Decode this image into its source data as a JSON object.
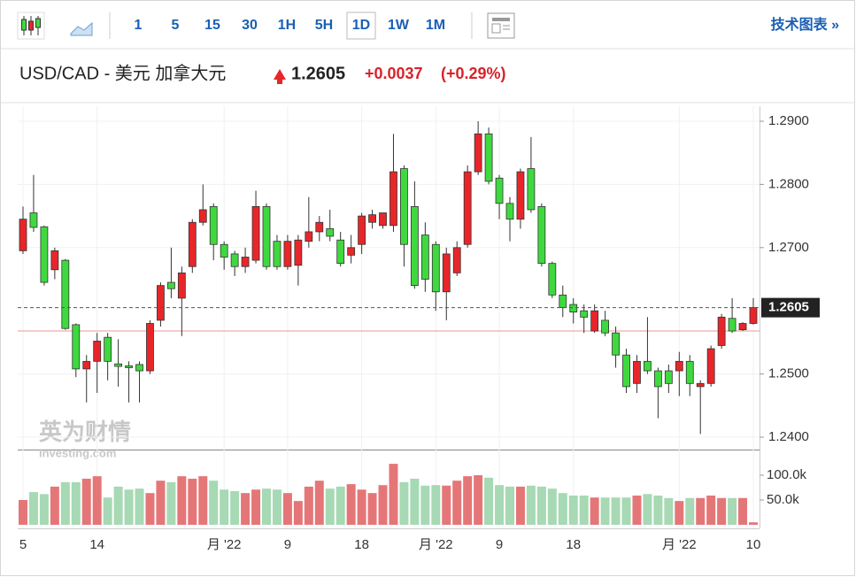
{
  "toolbar": {
    "intervals": [
      "1",
      "5",
      "15",
      "30",
      "1H",
      "5H",
      "1D",
      "1W",
      "1M"
    ],
    "active": "1D",
    "link": "技术图表 »"
  },
  "header": {
    "title": "USD/CAD - 美元 加拿大元",
    "price": "1.2605",
    "change": "+0.0037",
    "change_pct": "(+0.29%)"
  },
  "watermark": {
    "brand": "英为财情",
    "site": "Investing.com"
  },
  "chart_data": {
    "type": "candlestick",
    "categories": [
      "5",
      null,
      null,
      null,
      null,
      null,
      null,
      "14",
      null,
      null,
      null,
      null,
      null,
      null,
      null,
      null,
      null,
      null,
      null,
      "月 '22",
      null,
      null,
      null,
      null,
      null,
      "9",
      null,
      null,
      null,
      null,
      null,
      null,
      "18",
      null,
      null,
      null,
      null,
      null,
      null,
      "月 '22",
      null,
      null,
      null,
      null,
      null,
      "9",
      null,
      null,
      null,
      null,
      null,
      null,
      "18",
      null,
      null,
      null,
      null,
      null,
      null,
      null,
      null,
      null,
      "月 '22",
      null,
      null,
      null,
      null,
      null,
      null,
      "10"
    ],
    "open": [
      1.2695,
      1.2755,
      1.2733,
      1.2665,
      1.268,
      1.2578,
      1.2508,
      1.252,
      1.2558,
      1.2516,
      1.2513,
      1.2515,
      1.2505,
      1.2585,
      1.2645,
      1.262,
      1.267,
      1.274,
      1.2765,
      1.2705,
      1.269,
      1.267,
      1.268,
      1.2765,
      1.271,
      1.267,
      1.2672,
      1.271,
      1.2725,
      1.273,
      1.2712,
      1.2688,
      1.2705,
      1.274,
      1.2735,
      1.2735,
      1.2825,
      1.2765,
      1.272,
      1.2705,
      1.263,
      1.266,
      1.2705,
      1.282,
      1.288,
      1.281,
      1.277,
      1.2745,
      1.2825,
      1.2765,
      1.2675,
      1.2625,
      1.261,
      1.26,
      1.2568,
      1.2585,
      1.2565,
      1.253,
      1.2485,
      1.252,
      1.2505,
      1.2505,
      1.2505,
      1.252,
      1.248,
      1.2485,
      1.2545,
      1.2588,
      1.257,
      1.258
    ],
    "high": [
      1.2765,
      1.2815,
      1.2735,
      1.27,
      1.2682,
      1.258,
      1.253,
      1.2565,
      1.2565,
      1.2555,
      1.252,
      1.252,
      1.2585,
      1.2645,
      1.27,
      1.267,
      1.2745,
      1.28,
      1.277,
      1.271,
      1.2695,
      1.27,
      1.279,
      1.277,
      1.272,
      1.272,
      1.272,
      1.278,
      1.275,
      1.276,
      1.2725,
      1.272,
      1.2755,
      1.276,
      1.2755,
      1.288,
      1.283,
      1.2805,
      1.274,
      1.271,
      1.27,
      1.271,
      1.283,
      1.29,
      1.289,
      1.2815,
      1.278,
      1.2825,
      1.2875,
      1.277,
      1.2678,
      1.264,
      1.262,
      1.261,
      1.261,
      1.26,
      1.2575,
      1.254,
      1.253,
      1.259,
      1.251,
      1.2515,
      1.2535,
      1.253,
      1.249,
      1.2545,
      1.2595,
      1.262,
      1.2582,
      1.262
    ],
    "low": [
      1.269,
      1.2725,
      1.264,
      1.265,
      1.257,
      1.2495,
      1.2455,
      1.247,
      1.249,
      1.248,
      1.2455,
      1.2455,
      1.25,
      1.2575,
      1.262,
      1.256,
      1.266,
      1.2735,
      1.268,
      1.2665,
      1.2655,
      1.266,
      1.2675,
      1.2665,
      1.2665,
      1.2665,
      1.264,
      1.27,
      1.271,
      1.271,
      1.267,
      1.2675,
      1.269,
      1.273,
      1.273,
      1.2725,
      1.267,
      1.2635,
      1.263,
      1.26,
      1.2585,
      1.2655,
      1.27,
      1.2815,
      1.28,
      1.2745,
      1.271,
      1.273,
      1.2755,
      1.267,
      1.262,
      1.259,
      1.258,
      1.2565,
      1.2565,
      1.256,
      1.251,
      1.247,
      1.247,
      1.25,
      1.243,
      1.247,
      1.2465,
      1.2465,
      1.2405,
      1.248,
      1.254,
      1.2565,
      1.2568,
      1.2578
    ],
    "close": [
      1.2745,
      1.2732,
      1.2645,
      1.2695,
      1.2572,
      1.2508,
      1.252,
      1.2552,
      1.252,
      1.2512,
      1.251,
      1.2505,
      1.258,
      1.264,
      1.2635,
      1.266,
      1.274,
      1.276,
      1.2705,
      1.2685,
      1.267,
      1.2685,
      1.2765,
      1.267,
      1.267,
      1.271,
      1.2712,
      1.2725,
      1.274,
      1.2718,
      1.2675,
      1.27,
      1.275,
      1.2752,
      1.2755,
      1.282,
      1.2705,
      1.264,
      1.265,
      1.263,
      1.269,
      1.27,
      1.282,
      1.288,
      1.2805,
      1.277,
      1.2745,
      1.282,
      1.276,
      1.2675,
      1.2625,
      1.2605,
      1.2598,
      1.259,
      1.26,
      1.2565,
      1.253,
      1.248,
      1.252,
      1.2505,
      1.248,
      1.2485,
      1.252,
      1.2485,
      1.2485,
      1.254,
      1.259,
      1.2568,
      1.258,
      1.2605
    ],
    "volume": [
      50000,
      66000,
      62000,
      77000,
      86000,
      86000,
      93000,
      98000,
      55000,
      77000,
      71000,
      73000,
      64000,
      89000,
      86000,
      98000,
      93000,
      98000,
      89000,
      71000,
      68000,
      64000,
      71000,
      73000,
      71000,
      64000,
      48000,
      77000,
      89000,
      73000,
      77000,
      82000,
      71000,
      64000,
      80000,
      123000,
      86000,
      93000,
      79000,
      80000,
      79000,
      89000,
      98000,
      100000,
      95000,
      80000,
      77000,
      77000,
      79000,
      77000,
      73000,
      64000,
      59000,
      59000,
      55000,
      55000,
      55000,
      55000,
      59000,
      62000,
      59000,
      54000,
      48000,
      54000,
      54000,
      59000,
      54000,
      54000,
      54000,
      5000
    ],
    "up_color": "#e8262a",
    "down_color": "#3fd93f",
    "up_volume_color": "#e57678",
    "down_volume_color": "#a6d9b4",
    "ylim": [
      1.23818,
      1.29238
    ],
    "yticks": [
      {
        "value": 1.29,
        "label": "1.2900"
      },
      {
        "value": 1.28,
        "label": "1.2800"
      },
      {
        "value": 1.27,
        "label": "1.2700"
      },
      {
        "value": 1.25,
        "label": "1.2500"
      },
      {
        "value": 1.24,
        "label": "1.2400"
      }
    ],
    "volume_ylim": [
      0,
      150000
    ],
    "volume_yticks": [
      {
        "value": 100000,
        "label": "100.0k"
      },
      {
        "value": 50000,
        "label": "50.0k"
      }
    ],
    "last_price": 1.2605,
    "prev_close": 1.2568,
    "grid": true
  }
}
